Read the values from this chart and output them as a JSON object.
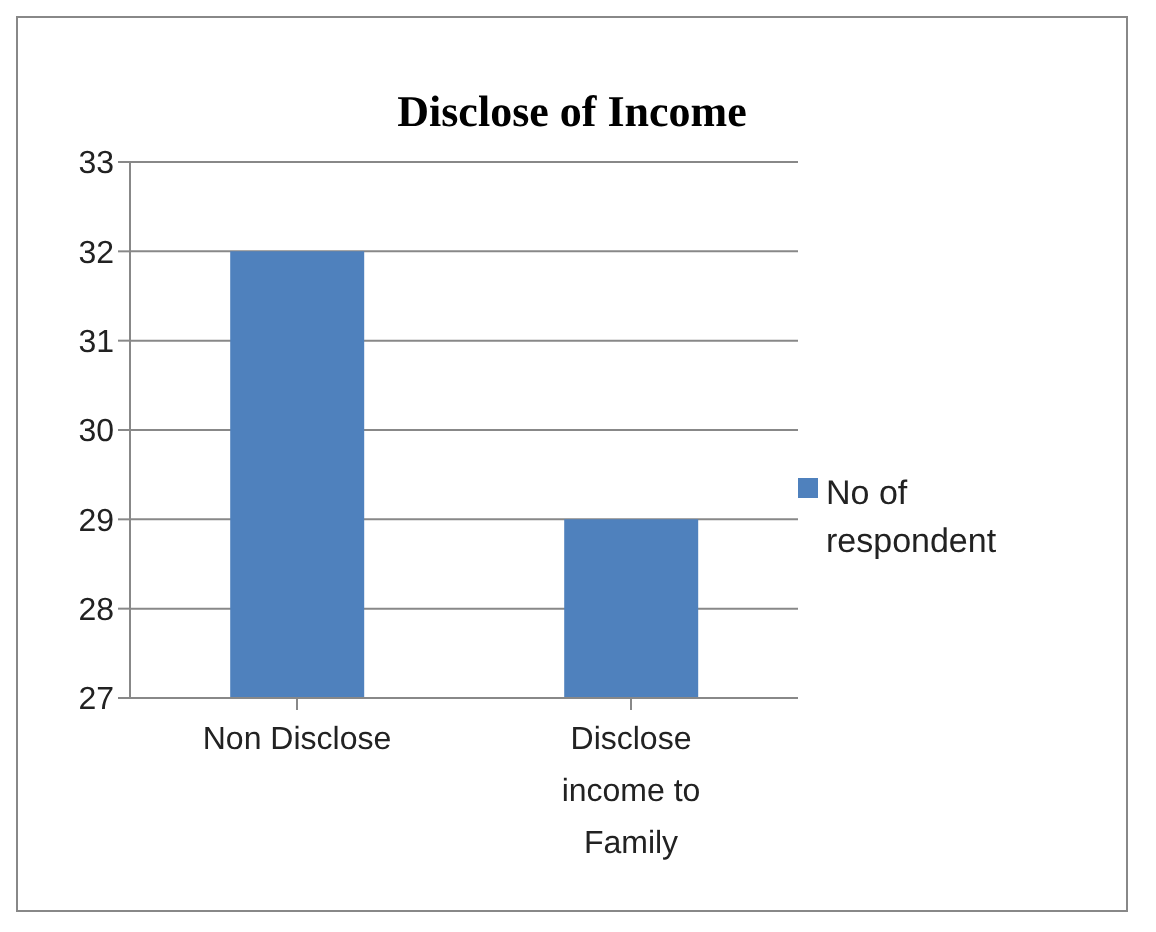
{
  "chart_data": {
    "type": "bar",
    "title": "Disclose of Income",
    "categories": [
      "Non Disclose",
      "Disclose income to Family"
    ],
    "series": [
      {
        "name": "No of respondent",
        "color": "#4f81bd",
        "values": [
          32,
          29
        ]
      }
    ],
    "ylim": [
      27,
      33
    ],
    "yticks": [
      27,
      28,
      29,
      30,
      31,
      32,
      33
    ],
    "grid": "y",
    "legend": "right"
  }
}
